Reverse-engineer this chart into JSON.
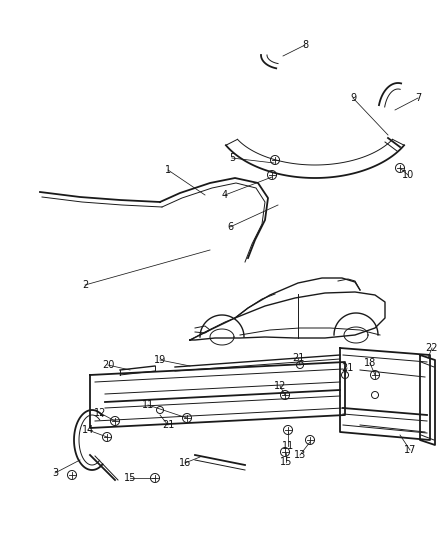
{
  "background_color": "#ffffff",
  "line_color": "#1a1a1a",
  "label_color": "#111111",
  "figsize": [
    4.39,
    5.33
  ],
  "dpi": 100,
  "lw_main": 1.3,
  "lw_thin": 0.7,
  "lw_med": 1.0,
  "fs_label": 7.0
}
